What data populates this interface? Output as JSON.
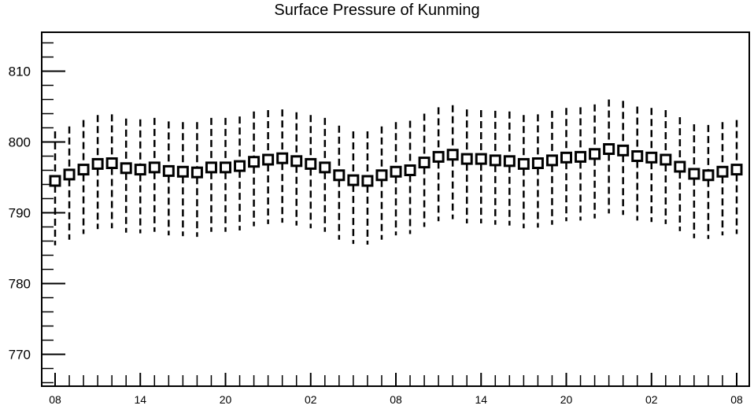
{
  "chart_data": {
    "type": "scatter",
    "title": "Surface Pressure of Kunming",
    "xlabel": "",
    "ylabel": "",
    "ylim": [
      765.5,
      815.5
    ],
    "y_ticks": [
      770,
      780,
      790,
      800,
      810
    ],
    "y_tick_labels": [
      "770",
      "780",
      "790",
      "800",
      "810"
    ],
    "x_tick_labels": [
      "08",
      "14",
      "20",
      "02",
      "08",
      "14",
      "20",
      "02",
      "08"
    ],
    "x_tick_hours": [
      0,
      6,
      12,
      18,
      24,
      30,
      36,
      42,
      48
    ],
    "x": [
      0,
      1,
      2,
      3,
      4,
      5,
      6,
      7,
      8,
      9,
      10,
      11,
      12,
      13,
      14,
      15,
      16,
      17,
      18,
      19,
      20,
      21,
      22,
      23,
      24,
      25,
      26,
      27,
      28,
      29,
      30,
      31,
      32,
      33,
      34,
      35,
      36,
      37,
      38,
      39,
      40,
      41,
      42,
      43,
      44,
      45,
      46,
      47,
      48
    ],
    "series": [
      {
        "values": [
          794.5,
          795.4,
          796.1,
          796.9,
          797.0,
          796.3,
          796.1,
          796.4,
          795.9,
          795.8,
          795.7,
          796.4,
          796.4,
          796.6,
          797.2,
          797.5,
          797.7,
          797.3,
          796.9,
          796.4,
          795.3,
          794.6,
          794.5,
          795.3,
          795.8,
          796.0,
          797.1,
          797.9,
          798.2,
          797.6,
          797.6,
          797.4,
          797.3,
          796.9,
          797.0,
          797.4,
          797.8,
          797.9,
          798.3,
          799.0,
          798.8,
          798.0,
          797.8,
          797.5,
          796.5,
          795.5,
          795.3,
          795.8,
          796.1
        ],
        "upper": [
          801.5,
          802.2,
          803.1,
          803.8,
          803.9,
          803.3,
          803.2,
          803.4,
          802.9,
          802.8,
          802.8,
          803.4,
          803.4,
          803.6,
          804.3,
          804.5,
          804.6,
          804.2,
          803.8,
          803.4,
          802.3,
          801.5,
          801.5,
          802.2,
          802.8,
          803.0,
          804.0,
          804.9,
          805.2,
          804.6,
          804.5,
          804.4,
          804.3,
          803.8,
          803.9,
          804.4,
          804.8,
          804.9,
          805.3,
          806.0,
          805.8,
          805.0,
          804.8,
          804.5,
          803.5,
          802.5,
          802.4,
          802.8,
          803.1
        ],
        "lower": [
          785.4,
          786.2,
          787.0,
          787.7,
          787.8,
          787.2,
          787.1,
          787.3,
          786.8,
          786.7,
          786.6,
          787.3,
          787.3,
          787.5,
          788.1,
          788.4,
          788.6,
          788.2,
          787.8,
          787.3,
          786.2,
          785.6,
          785.5,
          786.2,
          786.8,
          787.0,
          788.0,
          788.8,
          789.1,
          788.5,
          788.5,
          788.3,
          788.2,
          787.8,
          787.9,
          788.3,
          788.8,
          788.9,
          789.2,
          789.9,
          789.7,
          788.9,
          788.7,
          788.4,
          787.4,
          786.4,
          786.3,
          786.8,
          787.0
        ]
      }
    ],
    "grid": false,
    "legend": "none"
  }
}
